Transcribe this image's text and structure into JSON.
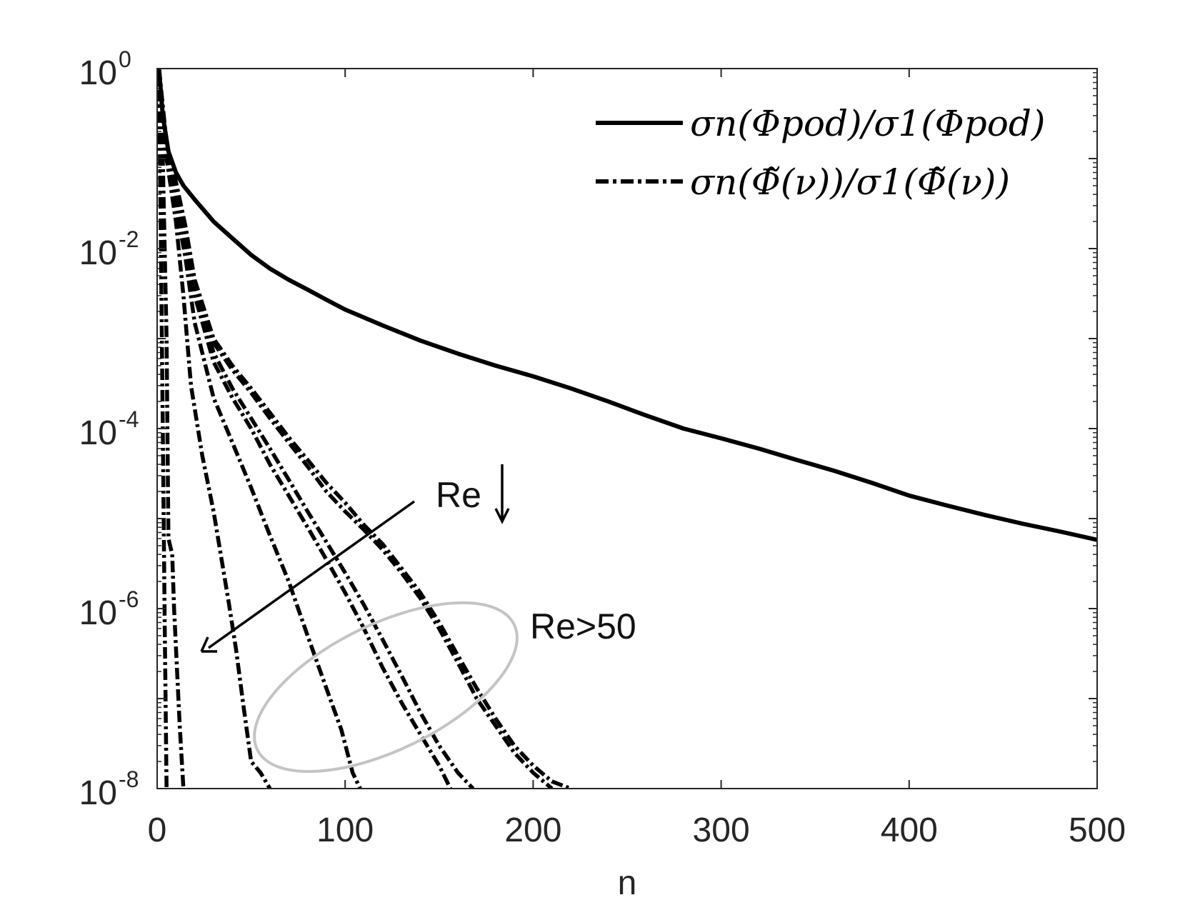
{
  "chart_data": {
    "type": "line",
    "xlabel": "n",
    "ylabel": "",
    "xlim": [
      0,
      500
    ],
    "ylim": [
      1e-08,
      1
    ],
    "yscale": "log",
    "grid": false,
    "legend_position": "top-right",
    "x_ticks": [
      "0",
      "100",
      "200",
      "300",
      "400",
      "500"
    ],
    "y_ticks": [
      {
        "base": "10",
        "exp": "0"
      },
      {
        "base": "10",
        "exp": "-2"
      },
      {
        "base": "10",
        "exp": "-4"
      },
      {
        "base": "10",
        "exp": "-6"
      },
      {
        "base": "10",
        "exp": "-8"
      }
    ],
    "series": [
      {
        "name": "σn(Φpod)/σ1(Φpod)",
        "style": "solid",
        "x": [
          1,
          3,
          6,
          10,
          14,
          20,
          30,
          40,
          50,
          60,
          70,
          80,
          90,
          100,
          120,
          140,
          160,
          180,
          200,
          220,
          240,
          260,
          280,
          300,
          320,
          340,
          360,
          380,
          400,
          420,
          440,
          460,
          480,
          500
        ],
        "y": [
          1,
          0.3,
          0.12,
          0.07,
          0.05,
          0.035,
          0.02,
          0.013,
          0.0085,
          0.006,
          0.0045,
          0.0035,
          0.0027,
          0.0021,
          0.0014,
          0.00095,
          0.00068,
          0.0005,
          0.00038,
          0.00028,
          0.0002,
          0.00014,
          0.0001,
          7.8e-05,
          6e-05,
          4.5e-05,
          3.4e-05,
          2.5e-05,
          1.8e-05,
          1.4e-05,
          1.1e-05,
          8.8e-06,
          7.2e-06,
          5.8e-06
        ]
      },
      {
        "name": "σn(Φ̃(ν))/σ1(Φ̃(ν))",
        "style": "dashdot",
        "x": [
          1,
          2,
          3,
          4,
          5
        ],
        "y": [
          1,
          0.01,
          0.0001,
          8e-07,
          1e-08
        ]
      },
      {
        "name": "",
        "style": "dashdot",
        "x": [
          1,
          3,
          5,
          6,
          8,
          9,
          12,
          14
        ],
        "y": [
          1,
          0.1,
          0.001,
          6e-06,
          4e-06,
          1e-06,
          5e-08,
          1e-08
        ]
      },
      {
        "name": "",
        "style": "dashdot",
        "x": [
          1,
          5,
          10,
          14,
          18,
          24,
          30,
          38,
          42,
          46,
          50,
          55,
          60
        ],
        "y": [
          1,
          0.1,
          0.02,
          0.003,
          0.0003,
          5e-05,
          1.2e-05,
          1.2e-06,
          3.5e-07,
          8e-08,
          2e-08,
          1.5e-08,
          1e-08
        ]
      },
      {
        "name": "",
        "style": "dashdot",
        "x": [
          1,
          5,
          10,
          15,
          20,
          30,
          40,
          50,
          60,
          70,
          80,
          90,
          98,
          104,
          108
        ],
        "y": [
          1,
          0.1,
          0.03,
          0.008,
          0.0015,
          0.00022,
          7e-05,
          2.2e-05,
          6.5e-06,
          2e-06,
          5e-07,
          1.3e-07,
          4.5e-08,
          1.5e-08,
          1e-08
        ]
      },
      {
        "name": "",
        "style": "dashdot",
        "x": [
          1,
          5,
          10,
          15,
          20,
          30,
          40,
          50,
          60,
          70,
          80,
          90,
          100,
          110,
          120,
          130,
          140,
          150,
          156
        ],
        "y": [
          1,
          0.12,
          0.04,
          0.012,
          0.003,
          0.00055,
          0.00022,
          0.0001,
          4e-05,
          1.8e-05,
          8e-06,
          3.5e-06,
          1.5e-06,
          6e-07,
          2.2e-07,
          9e-08,
          4e-08,
          1.8e-08,
          1e-08
        ]
      },
      {
        "name": "",
        "style": "dashdot",
        "x": [
          1,
          5,
          10,
          15,
          20,
          30,
          40,
          50,
          60,
          70,
          80,
          90,
          100,
          110,
          120,
          130,
          140,
          150,
          160,
          168
        ],
        "y": [
          1,
          0.13,
          0.045,
          0.014,
          0.0035,
          0.0007,
          0.00028,
          0.00013,
          6e-05,
          2.7e-05,
          1.2e-05,
          5.5e-06,
          2.5e-06,
          1.1e-06,
          4.5e-07,
          1.8e-07,
          7e-08,
          3e-08,
          1.5e-08,
          1e-08
        ]
      },
      {
        "name": "",
        "style": "dashdot",
        "x": [
          1,
          5,
          10,
          15,
          20,
          30,
          40,
          50,
          60,
          70,
          80,
          90,
          100,
          110,
          120,
          130,
          140,
          150,
          160,
          170,
          180,
          190,
          200,
          210
        ],
        "y": [
          1,
          0.14,
          0.05,
          0.016,
          0.004,
          0.0009,
          0.00045,
          0.00025,
          0.00013,
          7e-05,
          3.8e-05,
          2e-05,
          1.2e-05,
          7.5e-06,
          4.5e-06,
          2.5e-06,
          1.3e-06,
          6e-07,
          2.5e-07,
          1e-07,
          5e-08,
          2.5e-08,
          1.5e-08,
          1e-08
        ]
      },
      {
        "name": "",
        "style": "dashdot",
        "x": [
          1,
          5,
          10,
          15,
          20,
          30,
          40,
          50,
          60,
          70,
          80,
          90,
          100,
          110,
          120,
          130,
          140,
          150,
          160,
          170,
          180,
          190,
          200,
          210,
          220
        ],
        "y": [
          1,
          0.15,
          0.055,
          0.018,
          0.0045,
          0.001,
          0.0005,
          0.00028,
          0.00015,
          8e-05,
          4.5e-05,
          2.5e-05,
          1.5e-05,
          8.5e-06,
          5.2e-06,
          2.8e-06,
          1.5e-06,
          7e-07,
          3e-07,
          1.3e-07,
          6e-08,
          3e-08,
          1.8e-08,
          1.2e-08,
          1e-08
        ]
      }
    ]
  },
  "annotations": {
    "arrow_label": "Re",
    "ellipse_label": "Re>50"
  },
  "colors": {
    "line": "#000000",
    "ellipse": "#c4c4c4",
    "dash_gap": "#ffffff"
  }
}
